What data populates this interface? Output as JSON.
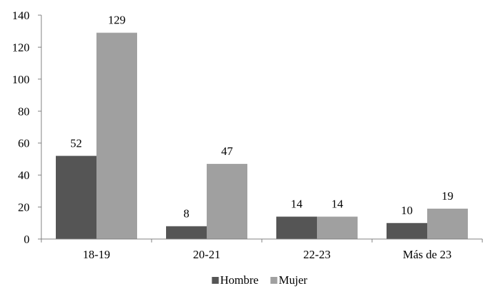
{
  "chart_data": {
    "type": "bar",
    "categories": [
      "18-19",
      "20-21",
      "22-23",
      "Más de 23"
    ],
    "series": [
      {
        "name": "Hombre",
        "values": [
          52,
          8,
          14,
          10
        ],
        "color": "#555555"
      },
      {
        "name": "Mujer",
        "values": [
          129,
          47,
          14,
          19
        ],
        "color": "#a0a0a0"
      }
    ],
    "ylim": [
      0,
      140
    ],
    "yticks": [
      "0",
      "20",
      "40",
      "60",
      "80",
      "100",
      "120",
      "140"
    ],
    "data_labels": [
      [
        "52",
        "8",
        "14",
        "10"
      ],
      [
        "129",
        "47",
        "14",
        "19"
      ]
    ],
    "grid": false,
    "legend_position": "bottom",
    "title": "",
    "xlabel": "",
    "ylabel": ""
  }
}
